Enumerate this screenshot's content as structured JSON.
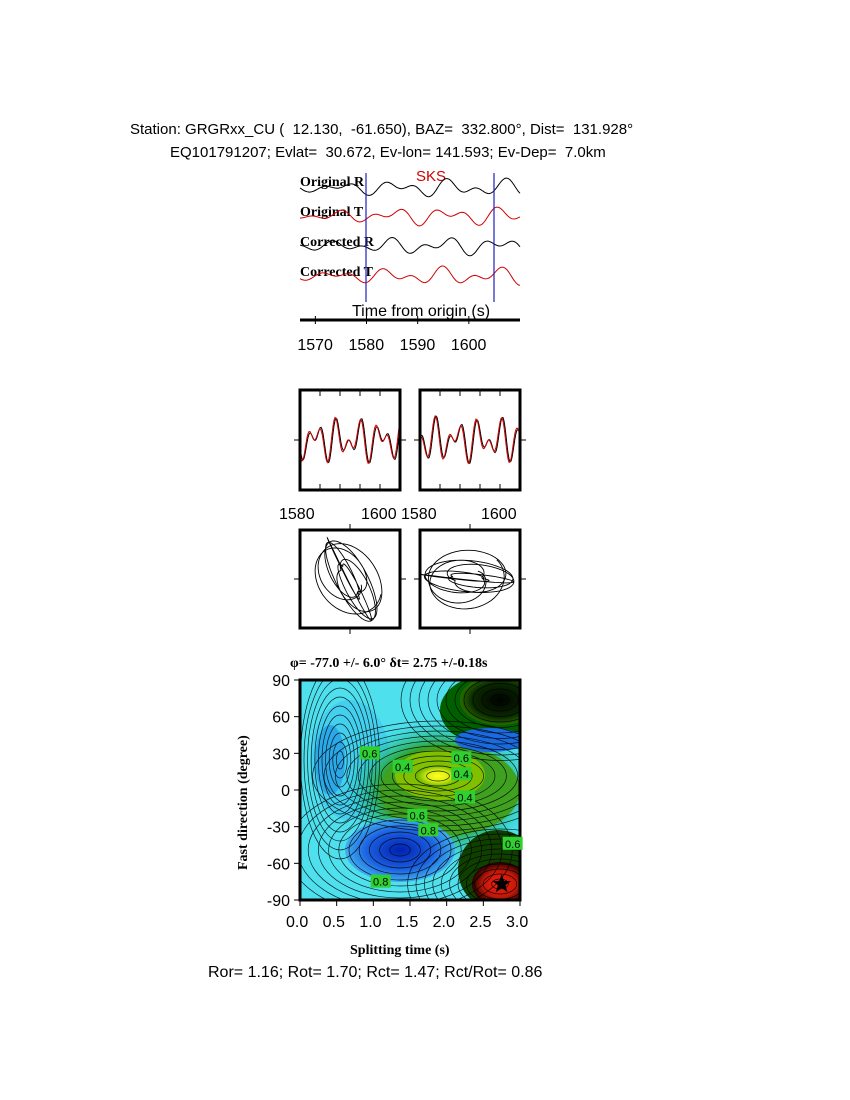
{
  "header": {
    "line1": "Station: GRGRxx_CU (  12.130,  -61.650), BAZ=  332.800°, Dist=  131.928°",
    "line2": "EQ101791207; Evlat=  30.672, Ev-lon= 141.593; Ev-Dep=  7.0km"
  },
  "traces_panel": {
    "phase_label": "SKS",
    "trace_labels": [
      "Original R",
      "Original T",
      "Corrected R",
      "Corrected T"
    ],
    "xlabel": "Time from origin (s)",
    "xticks": [
      1570,
      1580,
      1590,
      1600
    ],
    "xlim": [
      1567,
      1610
    ],
    "window_marks": [
      1580,
      1605
    ]
  },
  "particle_panels": {
    "xticks": [
      1580,
      1600
    ],
    "tick_labels": [
      "1580",
      "1600",
      "1580",
      "1600"
    ]
  },
  "footer": {
    "ratios": "Ror= 1.16; Rot= 1.70; Rct= 1.47; Rct/Rot= 0.86"
  },
  "chart_data": {
    "type": "heatmap",
    "title": "φ= -77.0 +/- 6.0° δt= 2.75 +/-0.18s",
    "xlabel": "Splitting time (s)",
    "ylabel": "Fast direction (degree)",
    "xlim": [
      0.0,
      3.0
    ],
    "ylim": [
      -90,
      90
    ],
    "xticks": [
      "0.0",
      "0.5",
      "1.0",
      "1.5",
      "2.0",
      "2.5",
      "3.0"
    ],
    "yticks": [
      "90",
      "60",
      "30",
      "0",
      "-30",
      "-60",
      "-90"
    ],
    "best_fit": {
      "dt": 2.75,
      "phi": -77.0
    },
    "contour_labels": [
      {
        "text": "0.6",
        "dt": 2.2,
        "phi": 26
      },
      {
        "text": "0.4",
        "dt": 2.2,
        "phi": 13
      },
      {
        "text": "0.4",
        "dt": 2.25,
        "phi": -6
      },
      {
        "text": "0.6",
        "dt": 1.6,
        "phi": -21
      },
      {
        "text": "0.8",
        "dt": 1.75,
        "phi": -33
      },
      {
        "text": "0.6",
        "dt": 2.9,
        "phi": -44
      },
      {
        "text": "0.8",
        "dt": 1.1,
        "phi": -75
      },
      {
        "text": "0.6",
        "dt": 0.95,
        "phi": 30
      },
      {
        "text": "0.4",
        "dt": 1.4,
        "phi": 19
      }
    ],
    "colors": {
      "low": "#00ffff",
      "mid": "#00a000",
      "high_yellow": "#ffff00",
      "blue_min": "#0030c0",
      "red_min": "#e01010",
      "dark": "#000000"
    }
  }
}
